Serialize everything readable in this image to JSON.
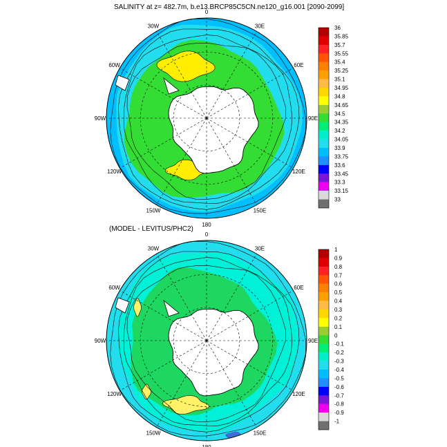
{
  "titles": {
    "top": "SALINITY at z= 482.7m, b.e13.BRCP85C5CN.ne120_g16.001 [2090-2099]",
    "bottom": "(MODEL - LEVITUS/PHC2)"
  },
  "lon_labels": [
    "0",
    "30E",
    "60E",
    "90E",
    "120E",
    "150E",
    "180",
    "150W",
    "120W",
    "90W",
    "60W",
    "30W"
  ],
  "colors": {
    "land": "#ffffff",
    "coast": "#000000",
    "blue": [
      "#3a6fd6",
      "#1e90ff",
      "#00bfff",
      "#22ddee",
      "#00f0d8"
    ],
    "green": [
      "#1ed760",
      "#33dd33"
    ],
    "yellow": "#ffee00",
    "light_yellow": "#fff266"
  },
  "maps": [
    {
      "id": "top",
      "colorbar": {
        "labels": [
          "36",
          "35.85",
          "35.7",
          "35.55",
          "35.4",
          "35.25",
          "35.1",
          "34.95",
          "34.8",
          "34.65",
          "34.5",
          "34.35",
          "34.2",
          "34.05",
          "33.9",
          "33.75",
          "33.6",
          "33.45",
          "33.3",
          "33.15",
          "33"
        ],
        "colors": [
          "#b30000",
          "#e00000",
          "#ff2222",
          "#ff5500",
          "#ff7f00",
          "#ffa000",
          "#ffbb44",
          "#ffd700",
          "#ffff00",
          "#9acd32",
          "#33dd33",
          "#00ee77",
          "#00eecc",
          "#22ddee",
          "#00bfff",
          "#1e90ff",
          "#0000ff",
          "#7b16d9",
          "#ee00ee",
          "#d9d9d9",
          "#707070"
        ]
      }
    },
    {
      "id": "bottom",
      "colorbar": {
        "labels": [
          "1",
          "0.9",
          "0.8",
          "0.7",
          "0.6",
          "0.5",
          "0.4",
          "0.3",
          "0.2",
          "0.1",
          "0",
          "-0.1",
          "-0.2",
          "-0.3",
          "-0.4",
          "-0.5",
          "-0.6",
          "-0.7",
          "-0.8",
          "-0.9",
          "-1"
        ],
        "colors": [
          "#b30000",
          "#e00000",
          "#ff2222",
          "#ff5500",
          "#ff7f00",
          "#ffa000",
          "#ffbb44",
          "#ffd700",
          "#ffff00",
          "#9acd32",
          "#33dd33",
          "#00ee77",
          "#00eecc",
          "#22ddee",
          "#00bfff",
          "#1e90ff",
          "#0000ff",
          "#7b16d9",
          "#ee00ee",
          "#d9d9d9",
          "#707070"
        ]
      }
    }
  ]
}
